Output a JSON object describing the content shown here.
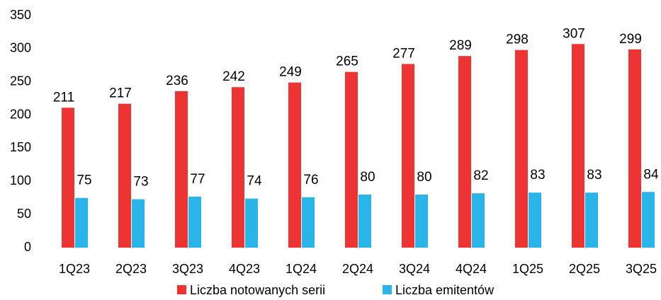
{
  "chart_data": {
    "type": "bar",
    "categories": [
      "1Q23",
      "2Q23",
      "3Q23",
      "4Q23",
      "1Q24",
      "2Q24",
      "3Q24",
      "4Q24",
      "1Q25",
      "2Q25",
      "3Q25"
    ],
    "series": [
      {
        "name": "Liczba notowanych serii",
        "color": "#ee3333",
        "values": [
          211,
          217,
          236,
          242,
          249,
          265,
          277,
          289,
          298,
          307,
          299
        ]
      },
      {
        "name": "Liczba emitentów",
        "color": "#29b5e8",
        "values": [
          75,
          73,
          77,
          74,
          76,
          80,
          80,
          82,
          83,
          83,
          84
        ]
      }
    ],
    "ylim": [
      0,
      350
    ],
    "yticks": [
      0,
      50,
      100,
      150,
      200,
      250,
      300,
      350
    ],
    "grid": false,
    "legend": "bottom"
  }
}
